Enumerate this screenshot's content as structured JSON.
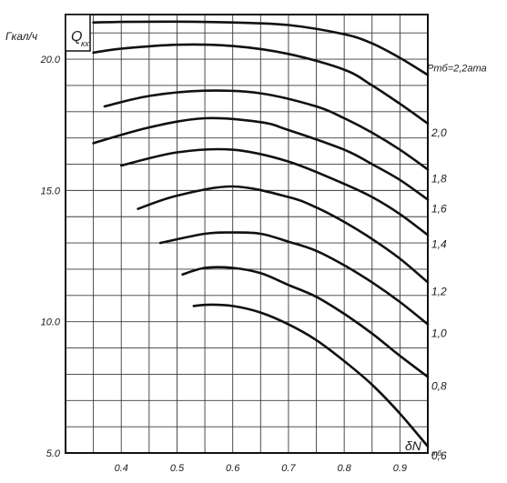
{
  "chart_data": {
    "type": "line",
    "title": "",
    "xlabel": "δN",
    "xlabel_sub": "тб",
    "ylabel": "Q",
    "ylabel_sub": "кх",
    "yunit": "Гкал/ч",
    "xlim": [
      0.3,
      0.95
    ],
    "ylim": [
      5.0,
      21.7
    ],
    "x_ticks": [
      0.4,
      0.5,
      0.6,
      0.7,
      0.8,
      0.9
    ],
    "x_tick_labels": [
      "0.4",
      "0.5",
      "0.6",
      "0.7",
      "0.8",
      "0.9"
    ],
    "y_ticks": [
      5.0,
      10.0,
      15.0,
      20.0
    ],
    "y_tick_labels": [
      "5.0",
      "10.0",
      "15.0",
      "20.0"
    ],
    "grid": true,
    "param_name": "Pтб",
    "param_unit": "ата",
    "series": [
      {
        "name": "2,2",
        "label": "Pтб=2,2ата",
        "points": [
          [
            0.35,
            21.4
          ],
          [
            0.4,
            21.42
          ],
          [
            0.5,
            21.43
          ],
          [
            0.6,
            21.4
          ],
          [
            0.7,
            21.3
          ],
          [
            0.8,
            20.95
          ],
          [
            0.85,
            20.6
          ],
          [
            0.9,
            20.05
          ],
          [
            0.95,
            19.4
          ]
        ]
      },
      {
        "name": "2,0",
        "label": "2,0",
        "points": [
          [
            0.35,
            20.25
          ],
          [
            0.4,
            20.4
          ],
          [
            0.5,
            20.55
          ],
          [
            0.6,
            20.5
          ],
          [
            0.7,
            20.2
          ],
          [
            0.8,
            19.6
          ],
          [
            0.85,
            19.0
          ],
          [
            0.9,
            18.3
          ],
          [
            0.95,
            17.55
          ]
        ]
      },
      {
        "name": "1,8",
        "label": "1,8",
        "points": [
          [
            0.37,
            18.2
          ],
          [
            0.45,
            18.6
          ],
          [
            0.55,
            18.8
          ],
          [
            0.65,
            18.7
          ],
          [
            0.75,
            18.2
          ],
          [
            0.8,
            17.75
          ],
          [
            0.85,
            17.2
          ],
          [
            0.9,
            16.55
          ],
          [
            0.95,
            15.8
          ]
        ]
      },
      {
        "name": "1,6",
        "label": "1,6",
        "points": [
          [
            0.35,
            16.8
          ],
          [
            0.45,
            17.4
          ],
          [
            0.55,
            17.75
          ],
          [
            0.65,
            17.6
          ],
          [
            0.7,
            17.3
          ],
          [
            0.8,
            16.55
          ],
          [
            0.85,
            16.0
          ],
          [
            0.9,
            15.4
          ],
          [
            0.95,
            14.65
          ]
        ]
      },
      {
        "name": "1,4",
        "label": "1,4",
        "points": [
          [
            0.4,
            15.95
          ],
          [
            0.5,
            16.45
          ],
          [
            0.6,
            16.55
          ],
          [
            0.7,
            16.1
          ],
          [
            0.8,
            15.25
          ],
          [
            0.85,
            14.75
          ],
          [
            0.9,
            14.1
          ],
          [
            0.95,
            13.3
          ]
        ]
      },
      {
        "name": "1,2",
        "label": "1,2",
        "points": [
          [
            0.43,
            14.3
          ],
          [
            0.5,
            14.8
          ],
          [
            0.6,
            15.15
          ],
          [
            0.7,
            14.75
          ],
          [
            0.75,
            14.35
          ],
          [
            0.8,
            13.8
          ],
          [
            0.85,
            13.15
          ],
          [
            0.9,
            12.4
          ],
          [
            0.95,
            11.5
          ]
        ]
      },
      {
        "name": "1,0",
        "label": "1,0",
        "points": [
          [
            0.47,
            13.0
          ],
          [
            0.55,
            13.35
          ],
          [
            0.6,
            13.4
          ],
          [
            0.65,
            13.35
          ],
          [
            0.7,
            13.05
          ],
          [
            0.75,
            12.7
          ],
          [
            0.8,
            12.15
          ],
          [
            0.85,
            11.5
          ],
          [
            0.9,
            10.75
          ],
          [
            0.95,
            9.9
          ]
        ]
      },
      {
        "name": "0,8",
        "label": "0,8",
        "points": [
          [
            0.51,
            11.8
          ],
          [
            0.55,
            12.05
          ],
          [
            0.6,
            12.05
          ],
          [
            0.65,
            11.85
          ],
          [
            0.7,
            11.4
          ],
          [
            0.75,
            10.95
          ],
          [
            0.8,
            10.3
          ],
          [
            0.85,
            9.55
          ],
          [
            0.9,
            8.7
          ],
          [
            0.95,
            7.9
          ]
        ]
      },
      {
        "name": "0,6",
        "label": "0,6",
        "points": [
          [
            0.53,
            10.6
          ],
          [
            0.56,
            10.65
          ],
          [
            0.6,
            10.6
          ],
          [
            0.65,
            10.35
          ],
          [
            0.7,
            9.9
          ],
          [
            0.75,
            9.3
          ],
          [
            0.8,
            8.5
          ],
          [
            0.85,
            7.6
          ],
          [
            0.9,
            6.5
          ],
          [
            0.95,
            5.25
          ]
        ]
      }
    ]
  }
}
